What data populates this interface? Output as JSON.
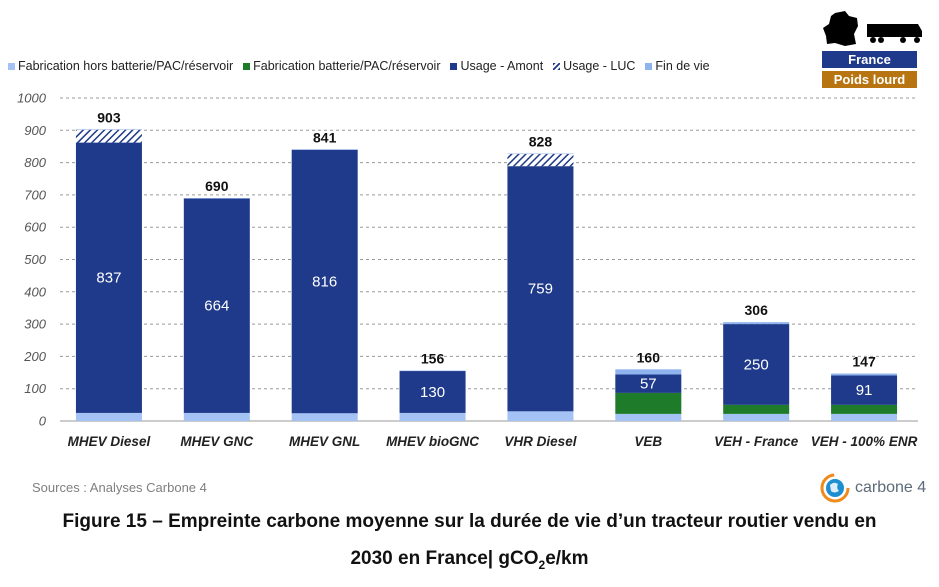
{
  "badges": {
    "country": "France",
    "vehicle": "Poids lourd"
  },
  "legend": [
    {
      "label": "Fabrication hors batterie/PAC/réservoir",
      "color": "#a4c2f4"
    },
    {
      "label": "Fabrication batterie/PAC/réservoir",
      "color": "#1e7b2a"
    },
    {
      "label": "Usage - Amont",
      "color": "#1f3a8a"
    },
    {
      "label": "Usage - LUC",
      "color": "#1f3a8a",
      "pattern": "hatch"
    },
    {
      "label": "Fin de vie",
      "color": "#8fb3ee"
    }
  ],
  "source": "Sources : Analyses Carbone 4",
  "brand": "carbone 4",
  "caption": {
    "line1": "Figure 15 – Empreinte carbone moyenne sur la durée de vie d’un tracteur routier vendu en",
    "line2_prefix": "2030 en France| gCO",
    "line2_sub": "2",
    "line2_suffix": "e/km"
  },
  "chart_data": {
    "type": "bar",
    "stacked": true,
    "categories": [
      "MHEV Diesel",
      "MHEV GNC",
      "MHEV GNL",
      "MHEV bioGNC",
      "VHR Diesel",
      "VEB",
      "VEH - France",
      "VEH - 100% ENR"
    ],
    "ylim": [
      0,
      1000
    ],
    "yticks": [
      0,
      100,
      200,
      300,
      400,
      500,
      600,
      700,
      800,
      900,
      1000
    ],
    "grid": true,
    "legend_position": "top",
    "totals": [
      903,
      690,
      841,
      156,
      828,
      160,
      306,
      147
    ],
    "labels_usage": [
      837,
      664,
      816,
      130,
      759,
      57,
      250,
      91
    ],
    "series": [
      {
        "name": "Fabrication hors batterie/PAC/réservoir",
        "color": "#a4c2f4",
        "values": [
          25,
          25,
          24,
          25,
          30,
          22,
          22,
          22
        ]
      },
      {
        "name": "Fabrication batterie/PAC/réservoir",
        "color": "#1e7b2a",
        "values": [
          0,
          0,
          0,
          0,
          0,
          65,
          28,
          28
        ]
      },
      {
        "name": "Usage - Amont",
        "color": "#1f3a8a",
        "values": [
          837,
          664,
          816,
          130,
          759,
          57,
          250,
          91
        ]
      },
      {
        "name": "Usage - LUC",
        "color": "#1f3a8a",
        "pattern": "hatch",
        "values": [
          40,
          0,
          0,
          0,
          38,
          0,
          0,
          0
        ]
      },
      {
        "name": "Fin de vie",
        "color": "#8fb3ee",
        "values": [
          1,
          1,
          1,
          1,
          1,
          16,
          6,
          6
        ]
      }
    ]
  }
}
